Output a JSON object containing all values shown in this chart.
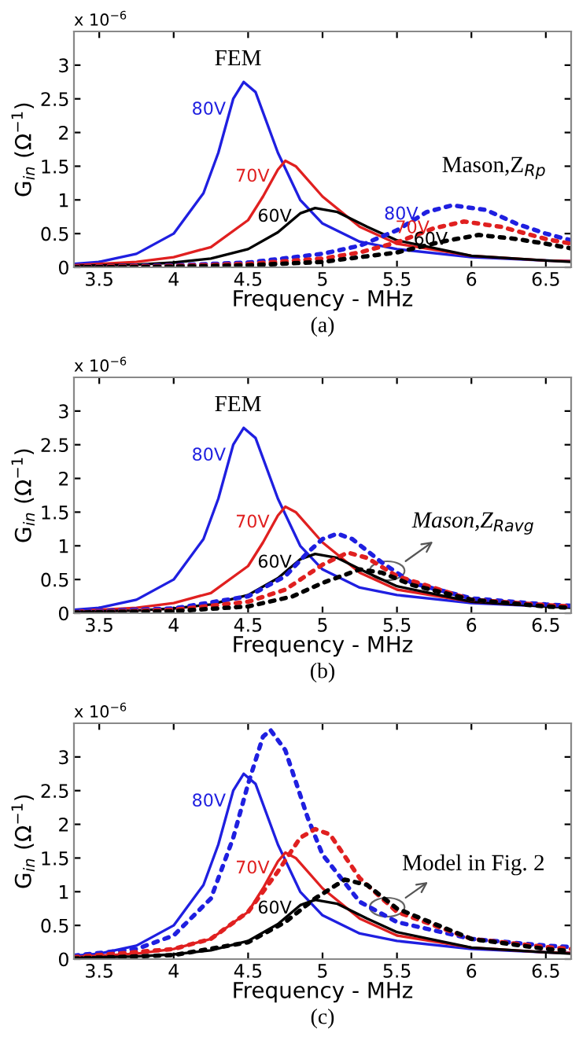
{
  "chart_data": [
    {
      "type": "line",
      "xlabel": "Frequency - MHz",
      "ylabel": "G$_{in}$ (Ω$^{−1}$)",
      "xlim": [
        3.33,
        6.67
      ],
      "ylim": [
        0,
        3.5
      ],
      "xticks": [
        3.5,
        4,
        4.5,
        5,
        5.5,
        6,
        6.5
      ],
      "yticks": [
        0,
        0.5,
        1,
        1.5,
        2,
        2.5,
        3
      ],
      "grid": false,
      "legend": false,
      "series": [
        {
          "name": "80V",
          "color": "#1f1fe0",
          "line_style": "solid",
          "x": [
            3.33,
            3.5,
            3.75,
            4.0,
            4.2,
            4.3,
            4.4,
            4.47,
            4.55,
            4.7,
            4.85,
            5.0,
            5.25,
            5.5,
            6.0,
            6.5,
            6.67
          ],
          "values": [
            0.05,
            0.08,
            0.2,
            0.5,
            1.1,
            1.7,
            2.5,
            2.75,
            2.6,
            1.7,
            1.0,
            0.65,
            0.38,
            0.27,
            0.15,
            0.1,
            0.09
          ]
        },
        {
          "name": "70V",
          "color": "#e02020",
          "line_style": "solid",
          "x": [
            3.33,
            3.75,
            4.0,
            4.25,
            4.5,
            4.6,
            4.7,
            4.75,
            4.82,
            5.0,
            5.25,
            5.5,
            6.0,
            6.5,
            6.67
          ],
          "values": [
            0.03,
            0.08,
            0.15,
            0.3,
            0.7,
            1.05,
            1.45,
            1.58,
            1.5,
            1.05,
            0.6,
            0.35,
            0.17,
            0.1,
            0.09
          ]
        },
        {
          "name": "60V",
          "color": "#000000",
          "line_style": "solid",
          "x": [
            3.33,
            3.75,
            4.0,
            4.25,
            4.5,
            4.7,
            4.85,
            4.95,
            5.1,
            5.3,
            5.5,
            6.0,
            6.5,
            6.67
          ],
          "values": [
            0.02,
            0.04,
            0.07,
            0.13,
            0.27,
            0.52,
            0.8,
            0.88,
            0.82,
            0.6,
            0.4,
            0.17,
            0.1,
            0.08
          ]
        },
        {
          "name": "80V",
          "color": "#1f1fe0",
          "line_style": "dotted",
          "x": [
            3.33,
            4.0,
            4.5,
            5.0,
            5.25,
            5.5,
            5.7,
            5.87,
            6.1,
            6.3,
            6.5,
            6.67
          ],
          "values": [
            0.01,
            0.03,
            0.07,
            0.2,
            0.32,
            0.55,
            0.82,
            0.92,
            0.85,
            0.65,
            0.5,
            0.4
          ]
        },
        {
          "name": "70V",
          "color": "#e02020",
          "line_style": "dotted",
          "x": [
            3.33,
            4.0,
            4.5,
            5.0,
            5.25,
            5.5,
            5.75,
            5.95,
            6.2,
            6.5,
            6.67
          ],
          "values": [
            0.01,
            0.02,
            0.05,
            0.13,
            0.22,
            0.37,
            0.58,
            0.68,
            0.6,
            0.42,
            0.35
          ]
        },
        {
          "name": "60V",
          "color": "#000000",
          "line_style": "dotted",
          "x": [
            3.33,
            4.0,
            4.5,
            5.0,
            5.5,
            5.8,
            6.05,
            6.3,
            6.5,
            6.67
          ],
          "values": [
            0.0,
            0.01,
            0.03,
            0.08,
            0.22,
            0.38,
            0.48,
            0.42,
            0.35,
            0.28
          ]
        }
      ],
      "annotations": [
        "x 10$^{−6}$",
        "(a)",
        "FEM",
        "Mason,Z$_{Rp}$"
      ]
    },
    {
      "type": "line",
      "xlabel": "Frequency - MHz",
      "ylabel": "G$_{in}$ (Ω$^{−1}$)",
      "xlim": [
        3.33,
        6.67
      ],
      "ylim": [
        0,
        3.5
      ],
      "xticks": [
        3.5,
        4,
        4.5,
        5,
        5.5,
        6,
        6.5
      ],
      "yticks": [
        0,
        0.5,
        1,
        1.5,
        2,
        2.5,
        3
      ],
      "grid": false,
      "legend": false,
      "series": [
        {
          "name": "80V",
          "color": "#1f1fe0",
          "line_style": "solid",
          "x": [
            3.33,
            3.5,
            3.75,
            4.0,
            4.2,
            4.3,
            4.4,
            4.47,
            4.55,
            4.7,
            4.85,
            5.0,
            5.25,
            5.5,
            6.0,
            6.5,
            6.67
          ],
          "values": [
            0.05,
            0.08,
            0.2,
            0.5,
            1.1,
            1.7,
            2.5,
            2.75,
            2.6,
            1.7,
            1.0,
            0.65,
            0.38,
            0.27,
            0.15,
            0.1,
            0.09
          ]
        },
        {
          "name": "70V",
          "color": "#e02020",
          "line_style": "solid",
          "x": [
            3.33,
            3.75,
            4.0,
            4.25,
            4.5,
            4.6,
            4.7,
            4.75,
            4.82,
            5.0,
            5.25,
            5.5,
            6.0,
            6.5,
            6.67
          ],
          "values": [
            0.03,
            0.08,
            0.15,
            0.3,
            0.7,
            1.05,
            1.45,
            1.58,
            1.5,
            1.05,
            0.6,
            0.35,
            0.17,
            0.1,
            0.09
          ]
        },
        {
          "name": "60V",
          "color": "#000000",
          "line_style": "solid",
          "x": [
            3.33,
            3.75,
            4.0,
            4.25,
            4.5,
            4.7,
            4.85,
            4.95,
            5.1,
            5.3,
            5.5,
            6.0,
            6.5,
            6.67
          ],
          "values": [
            0.02,
            0.04,
            0.07,
            0.13,
            0.27,
            0.52,
            0.8,
            0.88,
            0.82,
            0.6,
            0.4,
            0.17,
            0.1,
            0.08
          ]
        },
        {
          "color": "#1f1fe0",
          "line_style": "dotted",
          "x": [
            3.33,
            4.0,
            4.5,
            4.75,
            4.9,
            5.0,
            5.1,
            5.2,
            5.4,
            5.6,
            6.0,
            6.5,
            6.67
          ],
          "values": [
            0.02,
            0.07,
            0.25,
            0.55,
            0.9,
            1.1,
            1.18,
            1.1,
            0.75,
            0.45,
            0.22,
            0.13,
            0.11
          ]
        },
        {
          "color": "#e02020",
          "line_style": "dotted",
          "x": [
            3.33,
            4.0,
            4.5,
            4.75,
            5.0,
            5.17,
            5.3,
            5.5,
            6.0,
            6.5,
            6.67
          ],
          "values": [
            0.01,
            0.05,
            0.17,
            0.35,
            0.72,
            0.9,
            0.82,
            0.55,
            0.2,
            0.12,
            0.1
          ]
        },
        {
          "color": "#000000",
          "line_style": "dotted",
          "x": [
            3.33,
            4.0,
            4.5,
            4.8,
            5.0,
            5.25,
            5.4,
            5.6,
            6.0,
            6.5,
            6.67
          ],
          "values": [
            0.01,
            0.03,
            0.1,
            0.25,
            0.45,
            0.65,
            0.6,
            0.42,
            0.2,
            0.1,
            0.08
          ]
        }
      ],
      "annotations": [
        "x 10$^{−6}$",
        "(b)",
        "FEM",
        "Mason,Z$_{Ravg}$"
      ]
    },
    {
      "type": "line",
      "xlabel": "Frequency - MHz",
      "ylabel": "G$_{in}$ (Ω$^{−1}$)",
      "xlim": [
        3.33,
        6.67
      ],
      "ylim": [
        0,
        3.5
      ],
      "xticks": [
        3.5,
        4,
        4.5,
        5,
        5.5,
        6,
        6.5
      ],
      "yticks": [
        0,
        0.5,
        1,
        1.5,
        2,
        2.5,
        3
      ],
      "grid": false,
      "legend": false,
      "series": [
        {
          "name": "80V",
          "color": "#1f1fe0",
          "line_style": "solid",
          "x": [
            3.33,
            3.5,
            3.75,
            4.0,
            4.2,
            4.3,
            4.4,
            4.47,
            4.55,
            4.7,
            4.85,
            5.0,
            5.25,
            5.5,
            6.0,
            6.5,
            6.67
          ],
          "values": [
            0.05,
            0.08,
            0.2,
            0.5,
            1.1,
            1.7,
            2.5,
            2.75,
            2.6,
            1.7,
            1.0,
            0.65,
            0.38,
            0.27,
            0.15,
            0.1,
            0.09
          ]
        },
        {
          "name": "70V",
          "color": "#e02020",
          "line_style": "solid",
          "x": [
            3.33,
            3.75,
            4.0,
            4.25,
            4.5,
            4.6,
            4.7,
            4.75,
            4.82,
            5.0,
            5.25,
            5.5,
            6.0,
            6.5,
            6.67
          ],
          "values": [
            0.03,
            0.08,
            0.15,
            0.3,
            0.7,
            1.05,
            1.45,
            1.58,
            1.5,
            1.05,
            0.6,
            0.35,
            0.17,
            0.1,
            0.09
          ]
        },
        {
          "name": "60V",
          "color": "#000000",
          "line_style": "solid",
          "x": [
            3.33,
            3.75,
            4.0,
            4.25,
            4.5,
            4.7,
            4.85,
            4.95,
            5.1,
            5.3,
            5.5,
            6.0,
            6.5,
            6.67
          ],
          "values": [
            0.02,
            0.04,
            0.07,
            0.13,
            0.27,
            0.52,
            0.8,
            0.88,
            0.82,
            0.6,
            0.4,
            0.17,
            0.1,
            0.08
          ]
        },
        {
          "color": "#1f1fe0",
          "line_style": "dotted",
          "x": [
            3.33,
            3.75,
            4.0,
            4.25,
            4.4,
            4.5,
            4.6,
            4.65,
            4.75,
            4.9,
            5.0,
            5.25,
            5.5,
            6.0,
            6.5,
            6.67
          ],
          "values": [
            0.05,
            0.15,
            0.35,
            0.9,
            1.8,
            2.6,
            3.3,
            3.4,
            3.1,
            2.1,
            1.55,
            0.85,
            0.55,
            0.3,
            0.2,
            0.18
          ]
        },
        {
          "color": "#e02020",
          "line_style": "dotted",
          "x": [
            3.33,
            4.0,
            4.25,
            4.5,
            4.7,
            4.85,
            4.95,
            5.05,
            5.25,
            5.5,
            6.0,
            6.5,
            6.67
          ],
          "values": [
            0.03,
            0.15,
            0.3,
            0.7,
            1.3,
            1.8,
            1.93,
            1.85,
            1.2,
            0.7,
            0.3,
            0.18,
            0.15
          ]
        },
        {
          "color": "#000000",
          "line_style": "dotted",
          "x": [
            3.33,
            4.0,
            4.5,
            4.75,
            4.95,
            5.15,
            5.3,
            5.5,
            6.0,
            6.5,
            6.67
          ],
          "values": [
            0.01,
            0.06,
            0.25,
            0.55,
            0.9,
            1.18,
            1.1,
            0.75,
            0.3,
            0.15,
            0.12
          ]
        }
      ],
      "annotations": [
        "x 10$^{−6}$",
        "(c)",
        "Model in Fig. 2"
      ]
    }
  ]
}
